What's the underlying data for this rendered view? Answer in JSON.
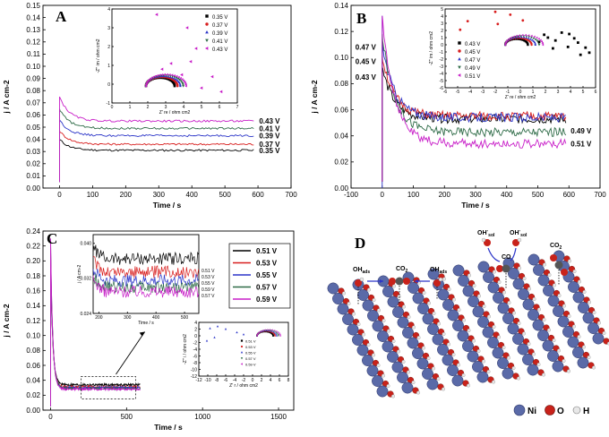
{
  "chart_data": [
    {
      "panel": "A",
      "type": "line",
      "xlabel": "Time / s",
      "ylabel": "j / A cm-2",
      "xlim": [
        -50,
        700
      ],
      "ylim": [
        0,
        0.15
      ],
      "xticks": [
        0,
        100,
        200,
        300,
        400,
        500,
        600,
        700
      ],
      "yticks": [
        0.0,
        0.01,
        0.02,
        0.03,
        0.04,
        0.05,
        0.06,
        0.07,
        0.08,
        0.09,
        0.1,
        0.11,
        0.12,
        0.13,
        0.14,
        0.15
      ],
      "series": [
        {
          "name": "0.35 V",
          "color": "#000000",
          "initial_peak": 0.04,
          "steady": 0.031
        },
        {
          "name": "0.37 V",
          "color": "#d81e1e",
          "initial_peak": 0.047,
          "steady": 0.036
        },
        {
          "name": "0.39 V",
          "color": "#2b35c8",
          "initial_peak": 0.056,
          "steady": 0.043
        },
        {
          "name": "0.41 V",
          "color": "#2e6b47",
          "initial_peak": 0.065,
          "steady": 0.049
        },
        {
          "name": "0.43 V",
          "color": "#c81ec8",
          "initial_peak": 0.075,
          "steady": 0.055
        }
      ],
      "inset": {
        "type": "scatter",
        "xlabel": "Z' re / ohm cm2",
        "ylabel": "-Z'' im / ohm cm2",
        "xlim": [
          0,
          7
        ],
        "ylim": [
          -1,
          4
        ],
        "xticks": [
          0,
          1,
          2,
          3,
          4,
          5,
          6,
          7
        ],
        "yticks": [
          -1,
          0,
          1,
          2,
          3,
          4
        ],
        "legend": [
          "0.35 V",
          "0.37 V",
          "0.39 V",
          "0.41 V",
          "0.43 V"
        ]
      }
    },
    {
      "panel": "B",
      "type": "line",
      "xlabel": "Time / s",
      "ylabel": "j / A cm-2",
      "xlim": [
        -100,
        700
      ],
      "ylim": [
        0,
        0.14
      ],
      "xticks": [
        -100,
        0,
        100,
        200,
        300,
        400,
        500,
        600,
        700
      ],
      "yticks": [
        0.0,
        0.02,
        0.04,
        0.06,
        0.08,
        0.1,
        0.12,
        0.14
      ],
      "series": [
        {
          "name": "0.43 V",
          "color": "#000000",
          "initial_peak": 0.092,
          "steady": 0.053
        },
        {
          "name": "0.45 V",
          "color": "#d81e1e",
          "initial_peak": 0.101,
          "steady": 0.055
        },
        {
          "name": "0.47 V",
          "color": "#2b35c8",
          "initial_peak": 0.11,
          "steady": 0.054
        },
        {
          "name": "0.49 V",
          "color": "#2e6b47",
          "initial_peak": 0.118,
          "steady": 0.043
        },
        {
          "name": "0.51 V",
          "color": "#c81ec8",
          "initial_peak": 0.132,
          "steady": 0.034
        }
      ],
      "inset": {
        "type": "scatter",
        "xlabel": "Z' re / ohm cm2",
        "ylabel": "-Z'' im / ohm cm2",
        "xlim": [
          -6,
          6
        ],
        "ylim": [
          -6,
          5
        ],
        "xticks": [
          -6,
          -5,
          -4,
          -3,
          -2,
          -1,
          0,
          1,
          2,
          3,
          4,
          5,
          6
        ],
        "yticks": [
          -6,
          -5,
          -4,
          -3,
          -2,
          -1,
          0,
          1,
          2,
          3,
          4,
          5
        ],
        "legend": [
          "0.43 V",
          "0.45 V",
          "0.47 V",
          "0.49 V",
          "0.51 V"
        ]
      }
    },
    {
      "panel": "C",
      "type": "line",
      "xlabel": "Time / s",
      "ylabel": "j / A cm-2",
      "xlim": [
        -50,
        1600
      ],
      "ylim": [
        0,
        0.24
      ],
      "xticks": [
        0,
        500,
        1000,
        1500
      ],
      "yticks": [
        0.0,
        0.02,
        0.04,
        0.06,
        0.08,
        0.1,
        0.12,
        0.14,
        0.16,
        0.18,
        0.2,
        0.22,
        0.24
      ],
      "legend": [
        "0.51 V",
        "0.53 V",
        "0.55 V",
        "0.57 V",
        "0.59 V"
      ],
      "series": [
        {
          "name": "0.51 V",
          "color": "#000000",
          "initial_peak": 0.2,
          "steady": 0.034
        },
        {
          "name": "0.53 V",
          "color": "#d81e1e",
          "initial_peak": 0.21,
          "steady": 0.031
        },
        {
          "name": "0.55 V",
          "color": "#2b35c8",
          "initial_peak": 0.215,
          "steady": 0.03
        },
        {
          "name": "0.57 V",
          "color": "#2e6b47",
          "initial_peak": 0.225,
          "steady": 0.029
        },
        {
          "name": "0.59 V",
          "color": "#c81ec8",
          "initial_peak": 0.23,
          "steady": 0.028
        }
      ],
      "zoom_inset": {
        "xlabel": "Time / s",
        "ylabel": "j / A cm-2",
        "xlim": [
          180,
          550
        ],
        "ylim": [
          0.024,
          0.042
        ],
        "xticks": [
          200,
          300,
          400,
          500
        ],
        "yticks": [
          0.024,
          0.032,
          0.04
        ],
        "labels": [
          "0.51 V",
          "0.53 V",
          "0.55 V",
          "0.59 V",
          "0.57 V"
        ]
      },
      "nyquist_inset": {
        "xlabel": "Z' r / ohm cm2",
        "ylabel": "-Z'' i / ohm cm2",
        "xlim": [
          -12,
          8
        ],
        "ylim": [
          -12,
          4
        ],
        "xticks": [
          -12,
          -10,
          -8,
          -6,
          -4,
          -2,
          0,
          2,
          4,
          6,
          8
        ],
        "yticks": [
          -12,
          -10,
          -8,
          -6,
          -4,
          -2,
          0,
          2,
          4
        ],
        "legend": [
          "0.51 V",
          "0.53 V",
          "0.55 V",
          "0.57 V",
          "0.59 V"
        ]
      }
    }
  ],
  "panels": {
    "a": "A",
    "b": "B",
    "c": "C",
    "d": "D"
  },
  "diagram": {
    "labels": {
      "oh_ads_1": "OH",
      "oh_ads_2": "OH",
      "ads_sub": "ads",
      "co2_1": "CO",
      "co2_2": "CO",
      "co_ads": "CO",
      "oh_sol_1": "OH",
      "oh_sol_2": "OH",
      "sol_sub": "sol",
      "two": "2"
    },
    "legend": [
      "Ni",
      "O",
      "H"
    ],
    "colors": {
      "ni": "#5a6aa8",
      "o": "#c8221a",
      "h": "#e8e8e8",
      "c": "#555555"
    }
  }
}
